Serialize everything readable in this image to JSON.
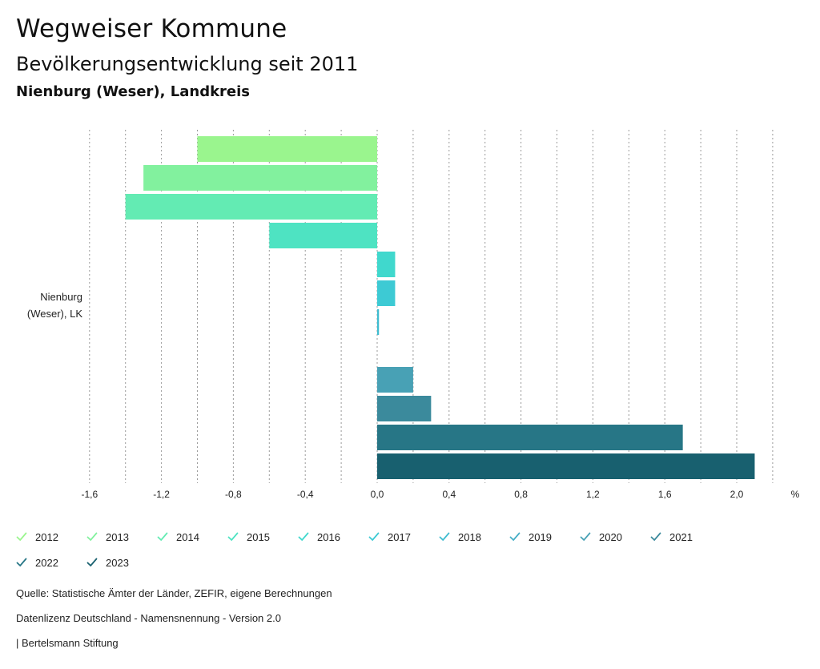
{
  "header": {
    "title": "Wegweiser Kommune",
    "subtitle": "Bevölkerungsentwicklung seit 2011",
    "region": "Nienburg (Weser), Landkreis"
  },
  "chart_data": {
    "type": "bar",
    "orientation": "horizontal",
    "category_label_lines": [
      "Nienburg",
      "(Weser), LK"
    ],
    "xlim": [
      -1.8,
      2.2
    ],
    "x_unit": "%",
    "x_ticks": [
      "-1,6",
      "-1,2",
      "-0,8",
      "-0,4",
      "0,0",
      "0,4",
      "0,8",
      "1,2",
      "1,6",
      "2,0"
    ],
    "x_tick_values": [
      -1.6,
      -1.2,
      -0.8,
      -0.4,
      0.0,
      0.4,
      0.8,
      1.2,
      1.6,
      2.0
    ],
    "grid": "vertical-dotted",
    "series": [
      {
        "name": "2012",
        "value": -1.0,
        "color": "#9af58e"
      },
      {
        "name": "2013",
        "value": -1.3,
        "color": "#82f19e"
      },
      {
        "name": "2014",
        "value": -1.4,
        "color": "#63ebb3"
      },
      {
        "name": "2015",
        "value": -0.6,
        "color": "#4ee3c2"
      },
      {
        "name": "2016",
        "value": 0.1,
        "color": "#40d8cd"
      },
      {
        "name": "2017",
        "value": 0.1,
        "color": "#3dcad4"
      },
      {
        "name": "2018",
        "value": 0.01,
        "color": "#3fbcd0"
      },
      {
        "name": "2019",
        "value": 0.0,
        "color": "#45aec6"
      },
      {
        "name": "2020",
        "value": 0.2,
        "color": "#48a1b5"
      },
      {
        "name": "2021",
        "value": 0.3,
        "color": "#3b8a9c"
      },
      {
        "name": "2022",
        "value": 1.7,
        "color": "#277686"
      },
      {
        "name": "2023",
        "value": 2.1,
        "color": "#18606f"
      }
    ]
  },
  "footer": {
    "source": "Quelle: Statistische Ämter der Länder, ZEFIR, eigene Berechnungen",
    "license": "Datenlizenz Deutschland - Namensnennung - Version 2.0",
    "publisher": "| Bertelsmann Stiftung"
  }
}
